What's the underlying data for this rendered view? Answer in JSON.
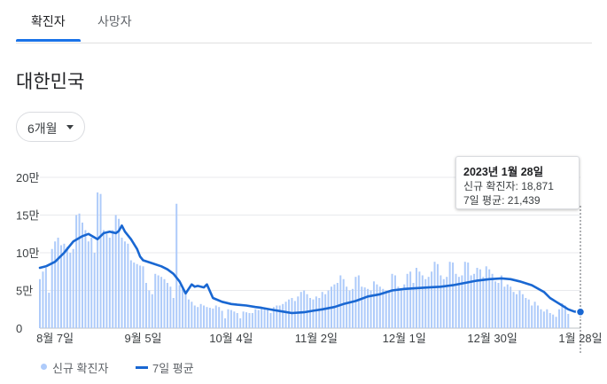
{
  "tabs": [
    {
      "label": "확진자",
      "active": true
    },
    {
      "label": "사망자",
      "active": false
    }
  ],
  "region_title": "대한민국",
  "period_selector": {
    "label": "6개월"
  },
  "tooltip": {
    "date": "2023년 1월 28일",
    "new_cases_line": "신규 확진자: 18,871",
    "avg_line": "7일 평균: 21,439"
  },
  "legend": {
    "bars": "신규 확진자",
    "line": "7일 평균"
  },
  "colors": {
    "bar": "#aecbfa",
    "line": "#1967d2",
    "accent": "#1a73e8"
  },
  "chart_data": {
    "type": "bar",
    "title": "",
    "ylim": [
      0,
      200000
    ],
    "y_ticks": [
      {
        "value": 0,
        "label": "0"
      },
      {
        "value": 50000,
        "label": "5만"
      },
      {
        "value": 100000,
        "label": "10만"
      },
      {
        "value": 150000,
        "label": "15만"
      },
      {
        "value": 200000,
        "label": "20만"
      }
    ],
    "x_ticks": [
      {
        "day": 0,
        "label": "8월 7일"
      },
      {
        "day": 29,
        "label": "9월 5일"
      },
      {
        "day": 58,
        "label": "10월 4일"
      },
      {
        "day": 86,
        "label": "11월 2일"
      },
      {
        "day": 115,
        "label": "12월 1일"
      },
      {
        "day": 144,
        "label": "12월 30일"
      },
      {
        "day": 173,
        "label": "1월 28일"
      }
    ],
    "x_range_days": [
      -5,
      173
    ],
    "series": [
      {
        "name": "신규 확진자",
        "type": "bar",
        "start_day": -5,
        "values": [
          65000,
          75000,
          80000,
          47000,
          105000,
          115000,
          120000,
          110000,
          112000,
          108000,
          100000,
          105000,
          150000,
          152000,
          140000,
          130000,
          115000,
          120000,
          100000,
          180000,
          178000,
          130000,
          125000,
          120000,
          130000,
          150000,
          145000,
          120000,
          115000,
          112000,
          90000,
          87000,
          85000,
          83000,
          82000,
          60000,
          50000,
          45000,
          72000,
          70000,
          68000,
          65000,
          60000,
          55000,
          40000,
          165000,
          57000,
          52000,
          45000,
          38000,
          35000,
          30000,
          28000,
          32000,
          30000,
          28000,
          27000,
          26000,
          30000,
          28000,
          23000,
          13000,
          25000,
          24000,
          22000,
          20000,
          13000,
          22000,
          21000,
          20000,
          20000,
          25000,
          24000,
          26000,
          25000,
          24000,
          20000,
          28000,
          30000,
          30000,
          32000,
          35000,
          38000,
          40000,
          36000,
          42000,
          48000,
          50000,
          45000,
          40000,
          38000,
          42000,
          40000,
          48000,
          45000,
          50000,
          55000,
          58000,
          60000,
          70000,
          65000,
          55000,
          50000,
          52000,
          68000,
          70000,
          55000,
          54000,
          52000,
          50000,
          62000,
          58000,
          55000,
          52000,
          50000,
          48000,
          72000,
          70000,
          55000,
          50000,
          58000,
          72000,
          75000,
          60000,
          80000,
          75000,
          70000,
          65000,
          68000,
          75000,
          88000,
          85000,
          70000,
          65000,
          68000,
          88000,
          87000,
          72000,
          68000,
          70000,
          88000,
          87000,
          70000,
          72000,
          80000,
          78000,
          68000,
          82000,
          78000,
          72000,
          62000,
          60000,
          70000,
          55000,
          58000,
          55000,
          48000,
          45000,
          50000,
          45000,
          40000,
          38000,
          30000,
          35000,
          30000,
          25000,
          22000,
          25000,
          20000,
          18000,
          15000,
          25000,
          33000,
          30000,
          18871
        ]
      },
      {
        "name": "7일 평균",
        "type": "line",
        "x": [
          -5,
          -3,
          0,
          3,
          6,
          9,
          11,
          14,
          16,
          18,
          20,
          21,
          22,
          23,
          25,
          27,
          28,
          29,
          32,
          35,
          37,
          39,
          41,
          43,
          45,
          46,
          47,
          49,
          50,
          52,
          55,
          58,
          60,
          63,
          66,
          68,
          72,
          75,
          78,
          82,
          85,
          88,
          92,
          95,
          99,
          103,
          107,
          111,
          115,
          119,
          123,
          127,
          131,
          135,
          139,
          143,
          147,
          150,
          153,
          157,
          161,
          163,
          165,
          167,
          169,
          171,
          173
        ],
        "values": [
          80000,
          82000,
          88000,
          100000,
          115000,
          122000,
          125000,
          118000,
          126000,
          128000,
          126000,
          129000,
          136000,
          128000,
          118000,
          105000,
          95000,
          90000,
          86000,
          82000,
          78000,
          72000,
          62000,
          46000,
          58000,
          55000,
          56000,
          54000,
          58000,
          40000,
          35000,
          32000,
          31000,
          30000,
          28000,
          27000,
          24000,
          22000,
          20000,
          21000,
          23000,
          25000,
          28000,
          32000,
          36000,
          42000,
          45000,
          50000,
          52000,
          53000,
          54000,
          55000,
          57000,
          60000,
          63000,
          65000,
          66000,
          65000,
          62000,
          57000,
          48000,
          40000,
          35000,
          30000,
          25000,
          22000,
          21439
        ]
      }
    ]
  }
}
